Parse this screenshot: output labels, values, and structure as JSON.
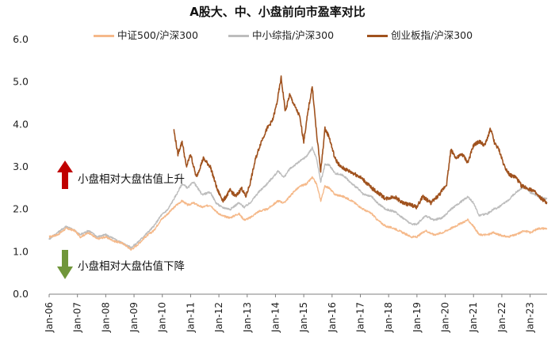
{
  "chart_data": {
    "type": "line",
    "title": "A股大、中、小盘前向市盈率对比",
    "xlabel": "",
    "ylabel": "",
    "ylim": [
      0,
      6
    ],
    "yticks": [
      "0.0",
      "1.0",
      "2.0",
      "3.0",
      "4.0",
      "5.0",
      "6.0"
    ],
    "xtick_labels": [
      "Jan-06",
      "Jan-07",
      "Jan-08",
      "Jan-09",
      "Jan-10",
      "Jan-11",
      "Jan-12",
      "Jan-13",
      "Jan-14",
      "Jan-15",
      "Jan-16",
      "Jan-17",
      "Jan-18",
      "Jan-19",
      "Jan-20",
      "Jan-21",
      "Jan-22",
      "Jan-23"
    ],
    "x_range": [
      2006.0,
      2023.6
    ],
    "grid": false,
    "legend_position": "top",
    "annotations": {
      "up": "小盘相对大盘估值上升",
      "down": "小盘相对大盘估值下降"
    },
    "colors": {
      "zz500": "#F5B98A",
      "zxb": "#BDBDBD",
      "cyb": "#A0521E",
      "up_arrow": "#C00000",
      "down_arrow": "#70963A"
    },
    "series": [
      {
        "name": "中证500/沪深300",
        "key": "zz500",
        "points": [
          [
            2006.0,
            1.35
          ],
          [
            2006.3,
            1.4
          ],
          [
            2006.6,
            1.55
          ],
          [
            2006.9,
            1.5
          ],
          [
            2007.1,
            1.35
          ],
          [
            2007.4,
            1.45
          ],
          [
            2007.7,
            1.3
          ],
          [
            2008.0,
            1.35
          ],
          [
            2008.3,
            1.25
          ],
          [
            2008.6,
            1.2
          ],
          [
            2008.9,
            1.05
          ],
          [
            2009.1,
            1.15
          ],
          [
            2009.4,
            1.35
          ],
          [
            2009.7,
            1.5
          ],
          [
            2009.95,
            1.75
          ],
          [
            2010.2,
            1.9
          ],
          [
            2010.5,
            2.1
          ],
          [
            2010.7,
            2.2
          ],
          [
            2010.9,
            2.1
          ],
          [
            2011.1,
            2.15
          ],
          [
            2011.4,
            2.05
          ],
          [
            2011.7,
            2.1
          ],
          [
            2011.9,
            1.95
          ],
          [
            2012.1,
            1.85
          ],
          [
            2012.4,
            1.8
          ],
          [
            2012.7,
            1.9
          ],
          [
            2012.9,
            1.75
          ],
          [
            2013.1,
            1.8
          ],
          [
            2013.4,
            1.95
          ],
          [
            2013.7,
            2.0
          ],
          [
            2013.9,
            2.1
          ],
          [
            2014.1,
            2.2
          ],
          [
            2014.3,
            2.15
          ],
          [
            2014.5,
            2.3
          ],
          [
            2014.7,
            2.45
          ],
          [
            2014.9,
            2.55
          ],
          [
            2015.1,
            2.6
          ],
          [
            2015.3,
            2.75
          ],
          [
            2015.45,
            2.6
          ],
          [
            2015.6,
            2.2
          ],
          [
            2015.75,
            2.55
          ],
          [
            2015.9,
            2.5
          ],
          [
            2016.1,
            2.35
          ],
          [
            2016.4,
            2.3
          ],
          [
            2016.7,
            2.2
          ],
          [
            2016.9,
            2.1
          ],
          [
            2017.1,
            2.0
          ],
          [
            2017.4,
            1.9
          ],
          [
            2017.6,
            1.75
          ],
          [
            2017.9,
            1.6
          ],
          [
            2018.2,
            1.55
          ],
          [
            2018.5,
            1.45
          ],
          [
            2018.8,
            1.35
          ],
          [
            2019.0,
            1.35
          ],
          [
            2019.3,
            1.5
          ],
          [
            2019.6,
            1.4
          ],
          [
            2019.9,
            1.45
          ],
          [
            2020.2,
            1.55
          ],
          [
            2020.5,
            1.65
          ],
          [
            2020.8,
            1.75
          ],
          [
            2021.0,
            1.6
          ],
          [
            2021.2,
            1.4
          ],
          [
            2021.5,
            1.4
          ],
          [
            2021.7,
            1.45
          ],
          [
            2021.9,
            1.4
          ],
          [
            2022.2,
            1.35
          ],
          [
            2022.5,
            1.4
          ],
          [
            2022.8,
            1.5
          ],
          [
            2023.0,
            1.45
          ],
          [
            2023.3,
            1.55
          ],
          [
            2023.6,
            1.55
          ]
        ]
      },
      {
        "name": "中小综指/沪深300",
        "key": "zxb",
        "points": [
          [
            2006.0,
            1.3
          ],
          [
            2006.3,
            1.45
          ],
          [
            2006.6,
            1.6
          ],
          [
            2006.9,
            1.5
          ],
          [
            2007.1,
            1.4
          ],
          [
            2007.4,
            1.5
          ],
          [
            2007.7,
            1.35
          ],
          [
            2008.0,
            1.4
          ],
          [
            2008.3,
            1.3
          ],
          [
            2008.6,
            1.2
          ],
          [
            2008.9,
            1.1
          ],
          [
            2009.1,
            1.2
          ],
          [
            2009.4,
            1.4
          ],
          [
            2009.7,
            1.6
          ],
          [
            2009.95,
            1.85
          ],
          [
            2010.2,
            2.0
          ],
          [
            2010.5,
            2.35
          ],
          [
            2010.7,
            2.6
          ],
          [
            2010.9,
            2.5
          ],
          [
            2011.1,
            2.65
          ],
          [
            2011.4,
            2.35
          ],
          [
            2011.7,
            2.4
          ],
          [
            2011.9,
            2.15
          ],
          [
            2012.1,
            2.05
          ],
          [
            2012.4,
            2.0
          ],
          [
            2012.7,
            2.15
          ],
          [
            2012.9,
            2.05
          ],
          [
            2013.1,
            2.15
          ],
          [
            2013.4,
            2.4
          ],
          [
            2013.7,
            2.6
          ],
          [
            2013.9,
            2.75
          ],
          [
            2014.1,
            2.9
          ],
          [
            2014.3,
            2.75
          ],
          [
            2014.5,
            2.95
          ],
          [
            2014.7,
            3.05
          ],
          [
            2014.9,
            3.15
          ],
          [
            2015.1,
            3.25
          ],
          [
            2015.3,
            3.45
          ],
          [
            2015.45,
            3.2
          ],
          [
            2015.6,
            2.65
          ],
          [
            2015.75,
            3.05
          ],
          [
            2015.9,
            3.05
          ],
          [
            2016.1,
            2.85
          ],
          [
            2016.4,
            2.8
          ],
          [
            2016.7,
            2.6
          ],
          [
            2016.9,
            2.5
          ],
          [
            2017.1,
            2.35
          ],
          [
            2017.4,
            2.3
          ],
          [
            2017.6,
            2.15
          ],
          [
            2017.9,
            2.0
          ],
          [
            2018.2,
            1.95
          ],
          [
            2018.5,
            1.8
          ],
          [
            2018.8,
            1.65
          ],
          [
            2019.0,
            1.65
          ],
          [
            2019.3,
            1.85
          ],
          [
            2019.6,
            1.75
          ],
          [
            2019.9,
            1.8
          ],
          [
            2020.2,
            2.0
          ],
          [
            2020.5,
            2.15
          ],
          [
            2020.8,
            2.3
          ],
          [
            2021.0,
            2.15
          ],
          [
            2021.2,
            1.85
          ],
          [
            2021.5,
            1.9
          ],
          [
            2021.7,
            2.0
          ],
          [
            2021.9,
            2.05
          ],
          [
            2022.2,
            2.2
          ],
          [
            2022.5,
            2.4
          ],
          [
            2022.8,
            2.55
          ],
          [
            2023.0,
            2.4
          ],
          [
            2023.3,
            2.3
          ],
          [
            2023.6,
            2.25
          ]
        ]
      },
      {
        "name": "创业板指/沪深300",
        "key": "cyb",
        "points": [
          [
            2010.4,
            3.9
          ],
          [
            2010.55,
            3.3
          ],
          [
            2010.7,
            3.6
          ],
          [
            2010.85,
            3.0
          ],
          [
            2011.0,
            3.3
          ],
          [
            2011.2,
            2.75
          ],
          [
            2011.45,
            3.2
          ],
          [
            2011.7,
            3.0
          ],
          [
            2011.95,
            2.45
          ],
          [
            2012.15,
            2.2
          ],
          [
            2012.4,
            2.45
          ],
          [
            2012.6,
            2.3
          ],
          [
            2012.8,
            2.5
          ],
          [
            2012.95,
            2.3
          ],
          [
            2013.1,
            2.6
          ],
          [
            2013.3,
            3.2
          ],
          [
            2013.5,
            3.6
          ],
          [
            2013.7,
            3.9
          ],
          [
            2013.9,
            4.1
          ],
          [
            2014.05,
            4.5
          ],
          [
            2014.2,
            5.1
          ],
          [
            2014.35,
            4.3
          ],
          [
            2014.5,
            4.7
          ],
          [
            2014.7,
            4.4
          ],
          [
            2014.85,
            4.2
          ],
          [
            2015.0,
            3.6
          ],
          [
            2015.15,
            4.3
          ],
          [
            2015.3,
            4.9
          ],
          [
            2015.45,
            3.8
          ],
          [
            2015.6,
            2.9
          ],
          [
            2015.75,
            3.9
          ],
          [
            2015.9,
            3.7
          ],
          [
            2016.1,
            3.2
          ],
          [
            2016.3,
            3.0
          ],
          [
            2016.6,
            2.9
          ],
          [
            2016.9,
            2.8
          ],
          [
            2017.1,
            2.7
          ],
          [
            2017.4,
            2.5
          ],
          [
            2017.6,
            2.4
          ],
          [
            2017.9,
            2.25
          ],
          [
            2018.2,
            2.3
          ],
          [
            2018.5,
            2.15
          ],
          [
            2018.8,
            2.1
          ],
          [
            2019.0,
            2.05
          ],
          [
            2019.2,
            2.3
          ],
          [
            2019.5,
            2.15
          ],
          [
            2019.8,
            2.35
          ],
          [
            2020.05,
            2.6
          ],
          [
            2020.2,
            3.4
          ],
          [
            2020.4,
            3.2
          ],
          [
            2020.6,
            3.3
          ],
          [
            2020.8,
            3.1
          ],
          [
            2021.0,
            3.5
          ],
          [
            2021.2,
            3.6
          ],
          [
            2021.4,
            3.5
          ],
          [
            2021.6,
            3.9
          ],
          [
            2021.75,
            3.55
          ],
          [
            2021.9,
            3.4
          ],
          [
            2022.1,
            3.0
          ],
          [
            2022.3,
            2.8
          ],
          [
            2022.5,
            2.75
          ],
          [
            2022.7,
            2.55
          ],
          [
            2022.9,
            2.5
          ],
          [
            2023.1,
            2.45
          ],
          [
            2023.3,
            2.3
          ],
          [
            2023.5,
            2.2
          ],
          [
            2023.6,
            2.15
          ]
        ]
      }
    ]
  }
}
